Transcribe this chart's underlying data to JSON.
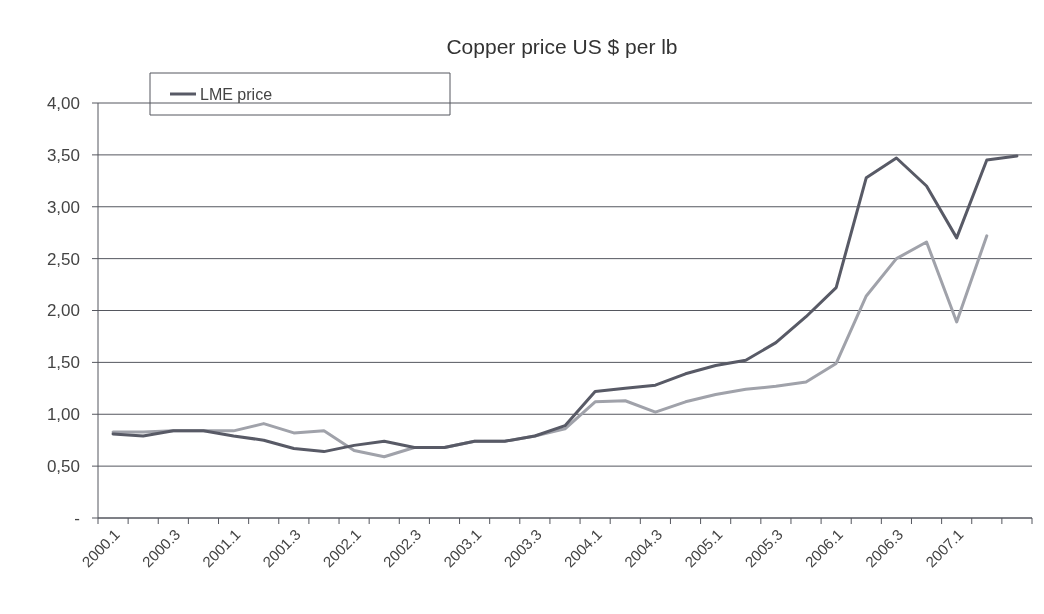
{
  "chart_data": {
    "type": "line",
    "title": "Copper price US $ per lb",
    "categories": [
      "2000.1",
      null,
      "2000.3",
      null,
      "2001.1",
      null,
      "2001.3",
      null,
      "2002.1",
      null,
      "2002.3",
      null,
      "2003.1",
      null,
      "2003.3",
      null,
      "2004.1",
      null,
      "2004.3",
      null,
      "2005.1",
      null,
      "2005.3",
      null,
      "2006.1",
      null,
      "2006.3",
      null,
      "2007.1",
      null,
      null
    ],
    "series": [
      {
        "color": "#a0a2aa",
        "values": [
          0.83,
          0.83,
          0.84,
          0.84,
          0.84,
          0.91,
          0.82,
          0.84,
          0.65,
          0.59,
          0.68,
          0.68,
          0.74,
          0.74,
          0.79,
          0.86,
          1.12,
          1.13,
          1.02,
          1.12,
          1.19,
          1.24,
          1.27,
          1.31,
          1.49,
          2.14,
          2.5,
          2.66,
          1.89,
          2.72,
          null
        ]
      },
      {
        "name": "LME price",
        "color": "#585a66",
        "values": [
          0.81,
          0.79,
          0.84,
          0.84,
          0.79,
          0.75,
          0.67,
          0.64,
          0.7,
          0.74,
          0.68,
          0.68,
          0.74,
          0.74,
          0.79,
          0.89,
          1.22,
          1.25,
          1.28,
          1.39,
          1.47,
          1.52,
          1.69,
          1.94,
          2.22,
          3.28,
          3.47,
          3.2,
          2.7,
          3.45,
          3.49
        ]
      }
    ],
    "ylim": [
      0,
      4
    ],
    "yticks": [
      {
        "value": 0,
        "label": "-"
      },
      {
        "value": 0.5,
        "label": "0,50"
      },
      {
        "value": 1,
        "label": "1,00"
      },
      {
        "value": 1.5,
        "label": "1,50"
      },
      {
        "value": 2,
        "label": "2,00"
      },
      {
        "value": 2.5,
        "label": "2,50"
      },
      {
        "value": 3,
        "label": "3,00"
      },
      {
        "value": 3.5,
        "label": "3,50"
      },
      {
        "value": 4,
        "label": "4,00"
      }
    ],
    "grid": "y",
    "legend": "top left",
    "marker": "none",
    "line_style": "solid"
  }
}
